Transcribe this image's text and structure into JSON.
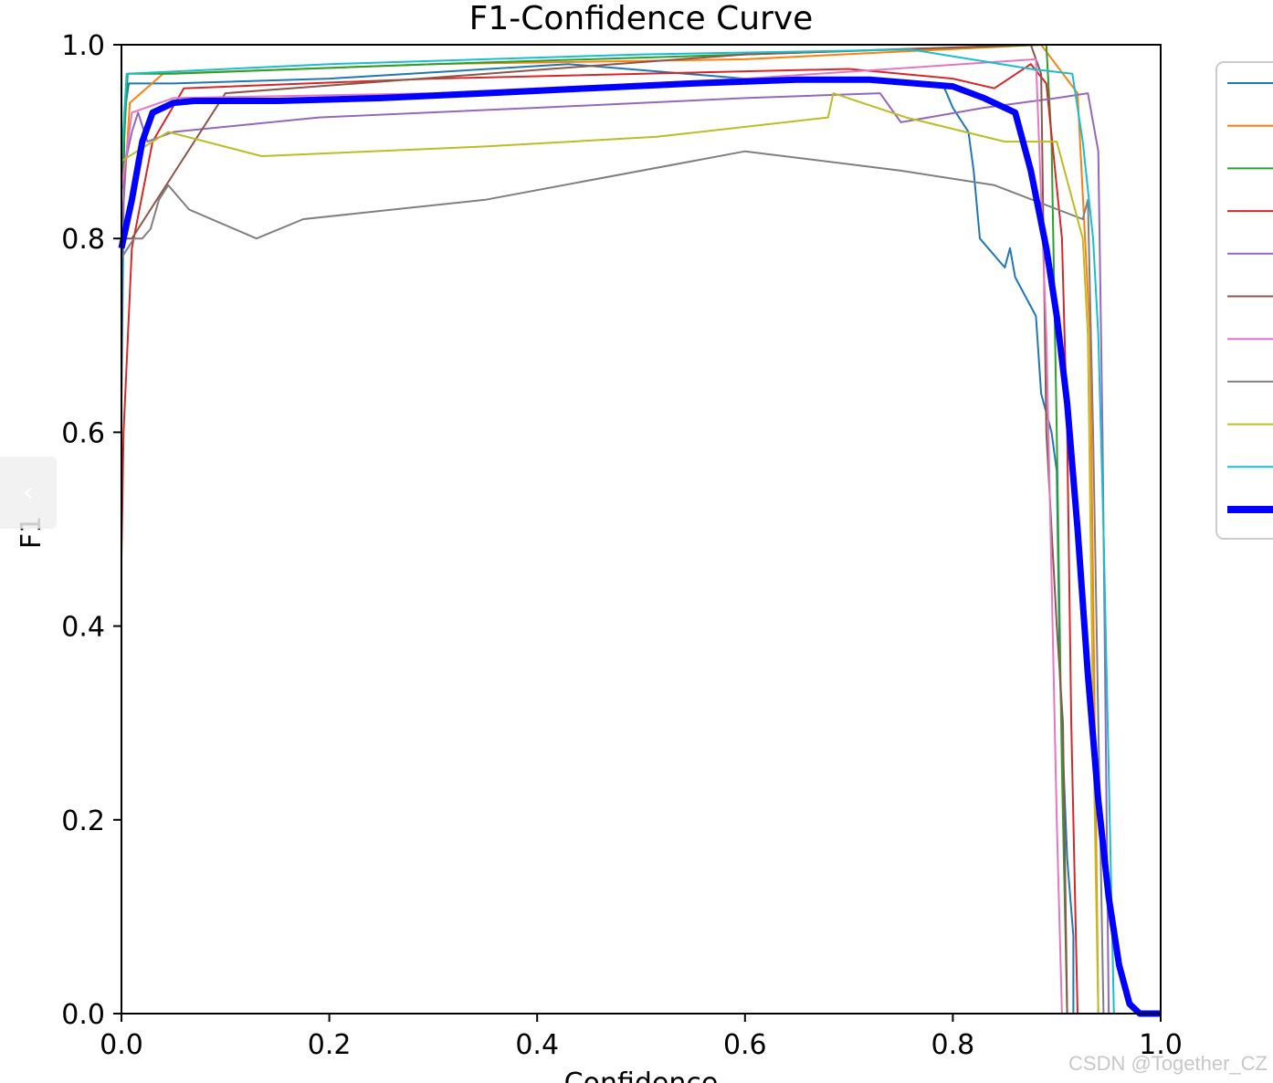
{
  "chart_data": {
    "type": "line",
    "title": "F1-Confidence Curve",
    "xlabel": "Confidence",
    "ylabel": "F1",
    "xlim": [
      0.0,
      1.0
    ],
    "ylim": [
      0.0,
      1.0
    ],
    "xticks": [
      "0.0",
      "0.2",
      "0.4",
      "0.6",
      "0.8",
      "1.0"
    ],
    "yticks": [
      "0.0",
      "0.2",
      "0.4",
      "0.6",
      "0.8",
      "1.0"
    ],
    "grid": false,
    "legend": "right (entry labels cut off)",
    "series": [
      {
        "color": "#1f77b4",
        "width": 2,
        "points": [
          [
            0,
            0.63
          ],
          [
            0.003,
            0.93
          ],
          [
            0.007,
            0.96
          ],
          [
            0.05,
            0.96
          ],
          [
            0.2,
            0.965
          ],
          [
            0.43,
            0.98
          ],
          [
            0.6,
            0.965
          ],
          [
            0.79,
            0.96
          ],
          [
            0.8,
            0.935
          ],
          [
            0.815,
            0.91
          ],
          [
            0.82,
            0.87
          ],
          [
            0.826,
            0.8
          ],
          [
            0.85,
            0.77
          ],
          [
            0.855,
            0.79
          ],
          [
            0.86,
            0.76
          ],
          [
            0.88,
            0.72
          ],
          [
            0.885,
            0.64
          ],
          [
            0.895,
            0.6
          ],
          [
            0.9,
            0.56
          ],
          [
            0.903,
            0.35
          ],
          [
            0.91,
            0.16
          ],
          [
            0.916,
            0.08
          ],
          [
            0.916,
            0
          ]
        ]
      },
      {
        "color": "#ff7f0e",
        "width": 2,
        "points": [
          [
            0,
            0.8
          ],
          [
            0.008,
            0.94
          ],
          [
            0.04,
            0.97
          ],
          [
            0.3,
            0.98
          ],
          [
            0.6,
            0.985
          ],
          [
            0.885,
            1.0
          ],
          [
            0.92,
            0.95
          ],
          [
            0.932,
            0.7
          ],
          [
            0.94,
            0.0
          ]
        ]
      },
      {
        "color": "#2ca02c",
        "width": 2,
        "points": [
          [
            0,
            0.85
          ],
          [
            0.006,
            0.97
          ],
          [
            0.05,
            0.97
          ],
          [
            0.3,
            0.98
          ],
          [
            0.6,
            0.99
          ],
          [
            0.89,
            1.0
          ],
          [
            0.895,
            0.9
          ],
          [
            0.9,
            0.6
          ],
          [
            0.905,
            0.25
          ],
          [
            0.91,
            0.0
          ]
        ]
      },
      {
        "color": "#d62728",
        "width": 2,
        "points": [
          [
            0,
            0.47
          ],
          [
            0.002,
            0.6
          ],
          [
            0.01,
            0.79
          ],
          [
            0.03,
            0.9
          ],
          [
            0.06,
            0.955
          ],
          [
            0.3,
            0.965
          ],
          [
            0.7,
            0.975
          ],
          [
            0.8,
            0.965
          ],
          [
            0.84,
            0.955
          ],
          [
            0.875,
            0.98
          ],
          [
            0.89,
            0.96
          ],
          [
            0.905,
            0.8
          ],
          [
            0.91,
            0.6
          ],
          [
            0.914,
            0.3
          ],
          [
            0.92,
            0.0
          ]
        ]
      },
      {
        "color": "#9467bd",
        "width": 2,
        "points": [
          [
            0,
            0.8
          ],
          [
            0.004,
            0.88
          ],
          [
            0.01,
            0.91
          ],
          [
            0.016,
            0.93
          ],
          [
            0.025,
            0.9
          ],
          [
            0.05,
            0.91
          ],
          [
            0.19,
            0.925
          ],
          [
            0.4,
            0.935
          ],
          [
            0.6,
            0.945
          ],
          [
            0.73,
            0.95
          ],
          [
            0.75,
            0.92
          ],
          [
            0.83,
            0.935
          ],
          [
            0.9,
            0.945
          ],
          [
            0.93,
            0.95
          ],
          [
            0.935,
            0.92
          ],
          [
            0.94,
            0.89
          ],
          [
            0.944,
            0.6
          ],
          [
            0.947,
            0.3
          ],
          [
            0.95,
            0.0
          ]
        ]
      },
      {
        "color": "#8c564b",
        "width": 2,
        "points": [
          [
            0,
            0.8
          ],
          [
            0.01,
            0.8
          ],
          [
            0.1,
            0.95
          ],
          [
            0.6,
            0.99
          ],
          [
            0.875,
            1.0
          ],
          [
            0.885,
            0.97
          ],
          [
            0.89,
            0.6
          ],
          [
            0.9,
            0.4
          ],
          [
            0.906,
            0.3
          ],
          [
            0.91,
            0.0
          ]
        ]
      },
      {
        "color": "#e377c2",
        "width": 2,
        "points": [
          [
            0,
            0.85
          ],
          [
            0.01,
            0.93
          ],
          [
            0.05,
            0.945
          ],
          [
            0.3,
            0.95
          ],
          [
            0.6,
            0.965
          ],
          [
            0.88,
            0.985
          ],
          [
            0.89,
            0.7
          ],
          [
            0.895,
            0.45
          ],
          [
            0.9,
            0.2
          ],
          [
            0.905,
            0.0
          ]
        ]
      },
      {
        "color": "#7f7f7f",
        "width": 2,
        "points": [
          [
            0,
            0.78
          ],
          [
            0.012,
            0.8
          ],
          [
            0.02,
            0.8
          ],
          [
            0.028,
            0.81
          ],
          [
            0.036,
            0.84
          ],
          [
            0.045,
            0.855
          ],
          [
            0.065,
            0.83
          ],
          [
            0.13,
            0.8
          ],
          [
            0.175,
            0.82
          ],
          [
            0.35,
            0.84
          ],
          [
            0.6,
            0.89
          ],
          [
            0.75,
            0.87
          ],
          [
            0.84,
            0.855
          ],
          [
            0.925,
            0.82
          ],
          [
            0.93,
            0.84
          ],
          [
            0.935,
            0.6
          ],
          [
            0.94,
            0.3
          ],
          [
            0.945,
            0.0
          ]
        ]
      },
      {
        "color": "#bcbd22",
        "width": 2,
        "points": [
          [
            0,
            0.88
          ],
          [
            0.03,
            0.9
          ],
          [
            0.045,
            0.91
          ],
          [
            0.135,
            0.885
          ],
          [
            0.35,
            0.895
          ],
          [
            0.515,
            0.905
          ],
          [
            0.68,
            0.925
          ],
          [
            0.685,
            0.95
          ],
          [
            0.755,
            0.925
          ],
          [
            0.85,
            0.9
          ],
          [
            0.9,
            0.9
          ],
          [
            0.925,
            0.8
          ],
          [
            0.93,
            0.7
          ],
          [
            0.935,
            0.3
          ],
          [
            0.94,
            0.0
          ]
        ]
      },
      {
        "color": "#17becf",
        "width": 2,
        "points": [
          [
            0,
            0.88
          ],
          [
            0.005,
            0.97
          ],
          [
            0.2,
            0.98
          ],
          [
            0.5,
            0.99
          ],
          [
            0.76,
            0.995
          ],
          [
            0.875,
            0.975
          ],
          [
            0.915,
            0.97
          ],
          [
            0.925,
            0.9
          ],
          [
            0.935,
            0.8
          ],
          [
            0.94,
            0.7
          ],
          [
            0.945,
            0.5
          ],
          [
            0.95,
            0.25
          ],
          [
            0.955,
            0.0
          ]
        ]
      },
      {
        "color": "#0000ff",
        "width": 7,
        "points": [
          [
            0,
            0.79
          ],
          [
            0.01,
            0.84
          ],
          [
            0.02,
            0.9
          ],
          [
            0.03,
            0.93
          ],
          [
            0.05,
            0.94
          ],
          [
            0.07,
            0.942
          ],
          [
            0.15,
            0.942
          ],
          [
            0.25,
            0.945
          ],
          [
            0.35,
            0.95
          ],
          [
            0.45,
            0.955
          ],
          [
            0.55,
            0.96
          ],
          [
            0.65,
            0.964
          ],
          [
            0.72,
            0.964
          ],
          [
            0.8,
            0.957
          ],
          [
            0.83,
            0.945
          ],
          [
            0.86,
            0.93
          ],
          [
            0.875,
            0.87
          ],
          [
            0.89,
            0.79
          ],
          [
            0.9,
            0.72
          ],
          [
            0.91,
            0.63
          ],
          [
            0.92,
            0.5
          ],
          [
            0.93,
            0.35
          ],
          [
            0.94,
            0.22
          ],
          [
            0.95,
            0.12
          ],
          [
            0.96,
            0.05
          ],
          [
            0.97,
            0.01
          ],
          [
            0.98,
            0.0
          ],
          [
            1.0,
            0.0
          ]
        ]
      }
    ]
  },
  "nav": {
    "prev_label": "‹"
  },
  "watermark": "CSDN @Together_CZ"
}
